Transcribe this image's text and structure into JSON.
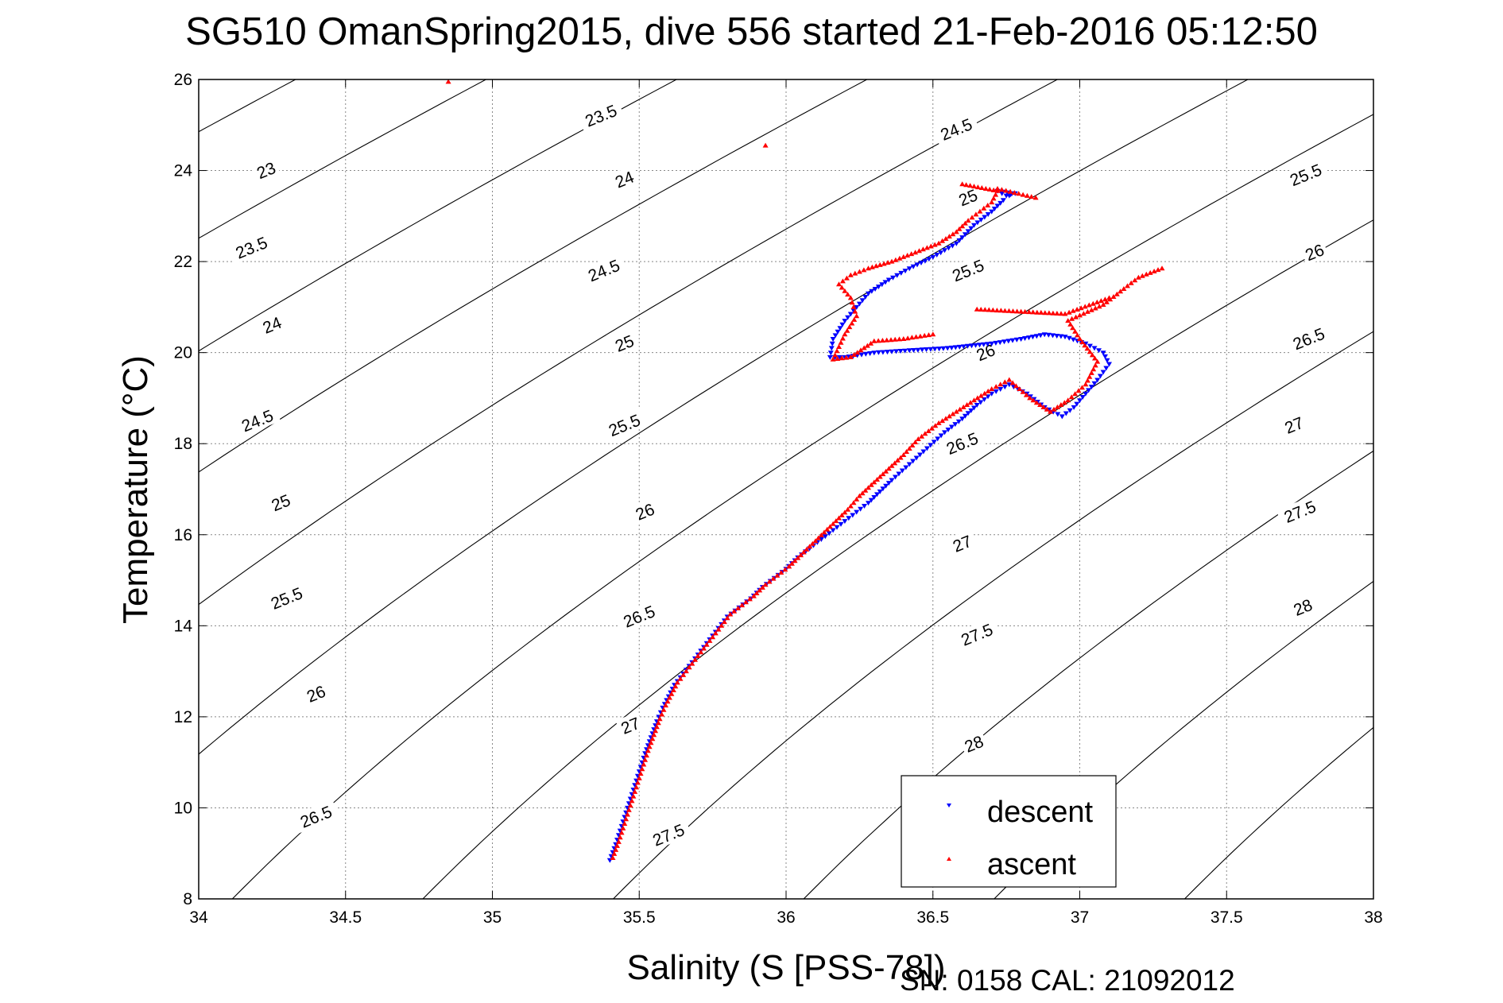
{
  "chart_data": {
    "type": "scatter",
    "title": "SG510 OmanSpring2015, dive 556 started 21-Feb-2016 05:12:50",
    "xlabel": "Salinity (S [PSS-78])",
    "ylabel": "Temperature (°C)",
    "xlim": [
      34,
      38
    ],
    "ylim": [
      8,
      26
    ],
    "xticks": [
      34,
      34.5,
      35,
      35.5,
      36,
      36.5,
      37,
      37.5,
      38
    ],
    "yticks": [
      8,
      10,
      12,
      14,
      16,
      18,
      20,
      22,
      24,
      26
    ],
    "grid": true,
    "legend_position": "bottom-right",
    "footer": "SN: 0158  CAL: 21092012",
    "contours": {
      "line_color": "#000000",
      "levels": [
        23,
        23.5,
        24,
        24.5,
        25,
        25.5,
        26,
        26.5,
        27,
        27.5,
        28
      ],
      "labels": [
        {
          "text": "23",
          "s": 34.23,
          "t": 24.0
        },
        {
          "text": "23.5",
          "s": 34.18,
          "t": 22.3
        },
        {
          "text": "24",
          "s": 34.25,
          "t": 20.6
        },
        {
          "text": "24.5",
          "s": 34.2,
          "t": 18.5
        },
        {
          "text": "25",
          "s": 34.28,
          "t": 16.7
        },
        {
          "text": "25.5",
          "s": 34.3,
          "t": 14.6
        },
        {
          "text": "26",
          "s": 34.4,
          "t": 12.5
        },
        {
          "text": "26.5",
          "s": 34.4,
          "t": 9.8
        },
        {
          "text": "23.5",
          "s": 35.37,
          "t": 25.2
        },
        {
          "text": "24",
          "s": 35.45,
          "t": 23.8
        },
        {
          "text": "24.5",
          "s": 35.38,
          "t": 21.8
        },
        {
          "text": "25",
          "s": 35.45,
          "t": 20.2
        },
        {
          "text": "25.5",
          "s": 35.45,
          "t": 18.4
        },
        {
          "text": "26",
          "s": 35.52,
          "t": 16.5
        },
        {
          "text": "26.5",
          "s": 35.5,
          "t": 14.2
        },
        {
          "text": "27",
          "s": 35.47,
          "t": 11.8
        },
        {
          "text": "27.5",
          "s": 35.6,
          "t": 9.4
        },
        {
          "text": "24.5",
          "s": 36.58,
          "t": 24.9
        },
        {
          "text": "25",
          "s": 36.62,
          "t": 23.4
        },
        {
          "text": "25.5",
          "s": 36.62,
          "t": 21.8
        },
        {
          "text": "26",
          "s": 36.68,
          "t": 20.0
        },
        {
          "text": "26.5",
          "s": 36.6,
          "t": 18.0
        },
        {
          "text": "27",
          "s": 36.6,
          "t": 15.8
        },
        {
          "text": "27.5",
          "s": 36.65,
          "t": 13.8
        },
        {
          "text": "28",
          "s": 36.64,
          "t": 11.4
        },
        {
          "text": "25.5",
          "s": 37.77,
          "t": 23.9
        },
        {
          "text": "26",
          "s": 37.8,
          "t": 22.2
        },
        {
          "text": "26.5",
          "s": 37.78,
          "t": 20.3
        },
        {
          "text": "27",
          "s": 37.73,
          "t": 18.4
        },
        {
          "text": "27.5",
          "s": 37.75,
          "t": 16.5
        },
        {
          "text": "28",
          "s": 37.76,
          "t": 14.4
        }
      ]
    },
    "series": [
      {
        "name": "descent",
        "color": "#0000ff",
        "marker": "triangle-down",
        "x": [
          35.4,
          35.42,
          35.44,
          35.46,
          35.48,
          35.5,
          35.52,
          35.54,
          35.56,
          35.58,
          35.6,
          35.62,
          35.65,
          35.68,
          35.71,
          35.74,
          35.77,
          35.8,
          35.84,
          35.88,
          35.92,
          35.96,
          36.0,
          36.04,
          36.08,
          36.12,
          36.16,
          36.2,
          36.24,
          36.28,
          36.32,
          36.36,
          36.42,
          36.48,
          36.54,
          36.6,
          36.65,
          36.7,
          36.76,
          36.82,
          36.88,
          36.94,
          36.98,
          37.02,
          37.06,
          37.1,
          37.08,
          37.02,
          36.95,
          36.88,
          36.8,
          36.7,
          36.55,
          36.42,
          36.3,
          36.2,
          36.15,
          36.16,
          36.2,
          36.24,
          36.28,
          36.35,
          36.42,
          36.5,
          36.58,
          36.64,
          36.7,
          36.74,
          36.76,
          36.78,
          36.75,
          36.72,
          36.77
        ],
        "y": [
          8.85,
          9.2,
          9.6,
          10.0,
          10.4,
          10.8,
          11.2,
          11.55,
          11.9,
          12.2,
          12.45,
          12.7,
          12.95,
          13.2,
          13.45,
          13.7,
          13.95,
          14.2,
          14.4,
          14.6,
          14.85,
          15.05,
          15.25,
          15.5,
          15.7,
          15.9,
          16.1,
          16.3,
          16.5,
          16.7,
          16.95,
          17.2,
          17.55,
          17.9,
          18.25,
          18.55,
          18.85,
          19.1,
          19.3,
          19.1,
          18.8,
          18.6,
          18.8,
          19.1,
          19.4,
          19.75,
          20.0,
          20.2,
          20.35,
          20.4,
          20.3,
          20.2,
          20.1,
          20.05,
          20.0,
          19.9,
          19.9,
          20.3,
          20.7,
          21.0,
          21.3,
          21.6,
          21.85,
          22.1,
          22.4,
          22.8,
          23.1,
          23.35,
          23.45,
          23.5,
          23.45,
          23.55,
          23.5
        ]
      },
      {
        "name": "ascent",
        "color": "#ff0000",
        "marker": "triangle-up",
        "x": [
          35.41,
          35.43,
          35.45,
          35.47,
          35.49,
          35.51,
          35.53,
          35.55,
          35.57,
          35.59,
          35.61,
          35.63,
          35.66,
          35.69,
          35.72,
          35.75,
          35.78,
          35.81,
          35.85,
          35.89,
          35.93,
          35.97,
          36.01,
          36.05,
          36.09,
          36.13,
          36.17,
          36.21,
          36.25,
          36.3,
          36.35,
          36.4,
          36.45,
          36.52,
          36.58,
          36.64,
          36.7,
          36.76,
          36.83,
          36.9,
          36.96,
          37.02,
          37.06,
          37.0,
          36.96,
          37.08,
          37.15,
          37.2,
          37.28,
          37.1,
          36.95,
          36.8,
          36.65,
          36.5,
          36.4,
          36.3,
          36.22,
          36.16,
          36.2,
          36.24,
          36.22,
          36.18,
          36.22,
          36.28,
          36.36,
          36.44,
          36.52,
          36.58,
          36.62,
          36.66,
          36.7,
          36.72,
          36.6,
          36.85,
          36.72,
          35.93
        ],
        "y": [
          8.9,
          9.25,
          9.65,
          10.05,
          10.45,
          10.85,
          11.25,
          11.6,
          11.95,
          12.25,
          12.5,
          12.75,
          13.0,
          13.25,
          13.5,
          13.75,
          14.0,
          14.25,
          14.45,
          14.65,
          14.9,
          15.1,
          15.3,
          15.55,
          15.8,
          16.05,
          16.3,
          16.55,
          16.85,
          17.15,
          17.45,
          17.75,
          18.1,
          18.45,
          18.7,
          18.95,
          19.2,
          19.4,
          19.0,
          18.7,
          18.95,
          19.3,
          19.8,
          20.3,
          20.7,
          21.05,
          21.4,
          21.65,
          21.85,
          21.2,
          20.85,
          20.9,
          20.95,
          20.4,
          20.3,
          20.25,
          19.9,
          19.85,
          20.4,
          20.8,
          21.2,
          21.5,
          21.7,
          21.85,
          22.0,
          22.2,
          22.4,
          22.65,
          22.9,
          23.1,
          23.3,
          23.55,
          23.7,
          23.4,
          23.6,
          24.55
        ]
      }
    ],
    "outliers": [
      {
        "s": 34.85,
        "t": 25.95,
        "series": "ascent"
      }
    ]
  }
}
